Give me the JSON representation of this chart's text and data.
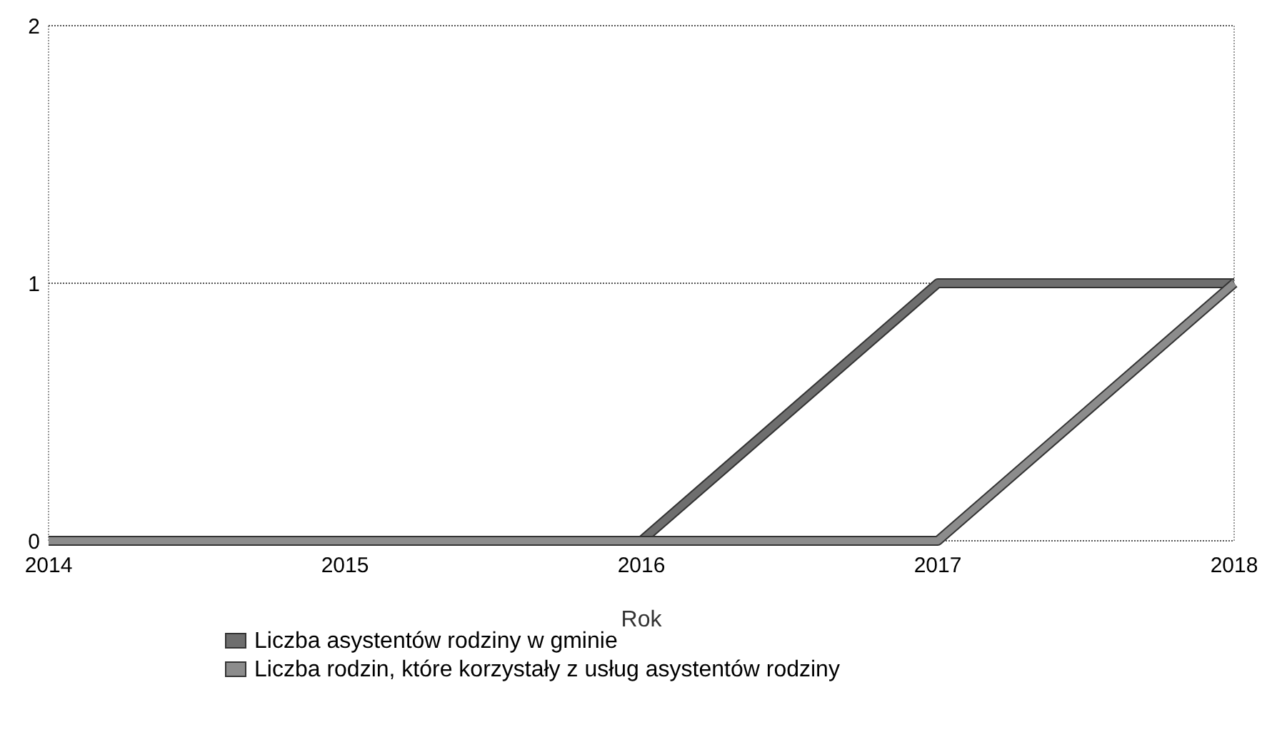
{
  "chart_data": {
    "type": "line",
    "xlabel": "Rok",
    "x": [
      2014,
      2015,
      2016,
      2017,
      2018
    ],
    "xlim": [
      2014,
      2018
    ],
    "xticks": [
      2014,
      2015,
      2016,
      2017,
      2018
    ],
    "ylim": [
      0,
      2
    ],
    "yticks": [
      0,
      1,
      2
    ],
    "grid": "y",
    "legend": "bottom",
    "line_style": "solid",
    "series": [
      {
        "name": "Liczba asystentów rodziny w gminie",
        "color": "#6e6e6e",
        "values": [
          0,
          0,
          0,
          1,
          1
        ]
      },
      {
        "name": "Liczba rodzin, które korzystały z usług asystentów rodziny",
        "color": "#8c8c8c",
        "values": [
          0,
          0,
          0,
          0,
          1
        ]
      }
    ]
  }
}
